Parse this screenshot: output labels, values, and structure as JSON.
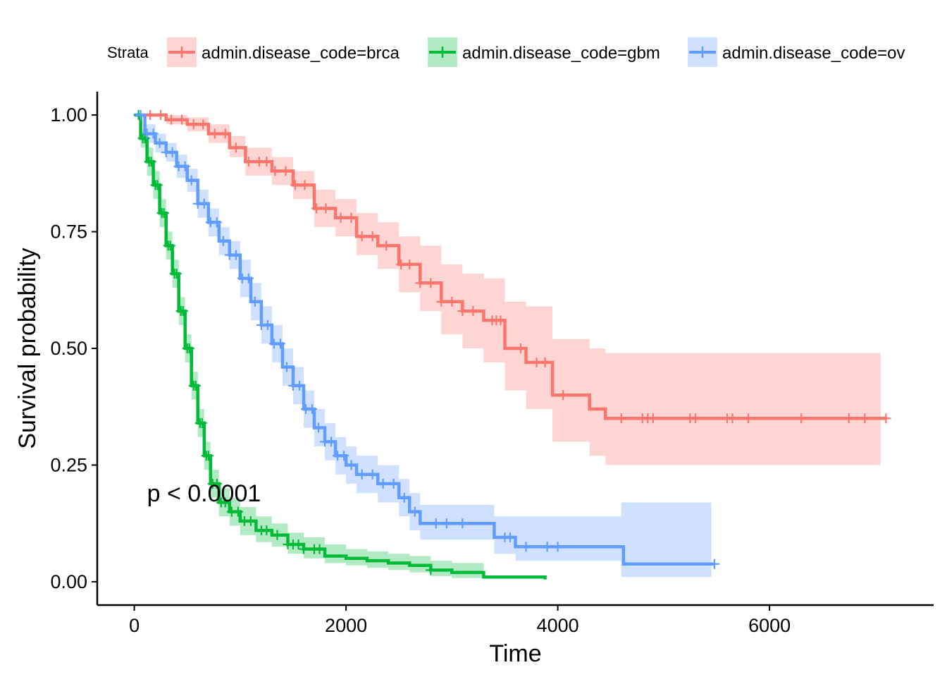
{
  "chart_data": {
    "type": "line",
    "subtype": "kaplan-meier",
    "title": "",
    "xlabel": "Time",
    "ylabel": "Survival probability",
    "xlim": [
      -350,
      7550
    ],
    "ylim": [
      -0.05,
      1.05
    ],
    "x_ticks": [
      0,
      2000,
      4000,
      6000
    ],
    "x_tick_labels": [
      "0",
      "2000",
      "4000",
      "6000"
    ],
    "y_ticks": [
      0,
      0.25,
      0.5,
      0.75,
      1.0
    ],
    "y_tick_labels": [
      "0.00",
      "0.25",
      "0.50",
      "0.75",
      "1.00"
    ],
    "grid": false,
    "legend": {
      "title": "Strata",
      "position": "top"
    },
    "annotation": {
      "text": "p < 0.0001",
      "x": 120,
      "y": 0.19
    },
    "series": [
      {
        "name": "admin.disease_code=brca",
        "color": "#F8766D",
        "fill": "#F8766D",
        "points": [
          [
            0,
            1.0
          ],
          [
            300,
            0.99
          ],
          [
            500,
            0.98
          ],
          [
            700,
            0.96
          ],
          [
            900,
            0.93
          ],
          [
            1050,
            0.9
          ],
          [
            1300,
            0.88
          ],
          [
            1500,
            0.85
          ],
          [
            1700,
            0.8
          ],
          [
            1900,
            0.78
          ],
          [
            2100,
            0.74
          ],
          [
            2300,
            0.72
          ],
          [
            2500,
            0.68
          ],
          [
            2700,
            0.64
          ],
          [
            2900,
            0.6
          ],
          [
            3100,
            0.58
          ],
          [
            3300,
            0.56
          ],
          [
            3450,
            0.56
          ],
          [
            3500,
            0.5
          ],
          [
            3700,
            0.47
          ],
          [
            3900,
            0.47
          ],
          [
            3950,
            0.4
          ],
          [
            4300,
            0.37
          ],
          [
            4450,
            0.35
          ],
          [
            7100,
            0.35
          ]
        ],
        "ci_upper": [
          [
            0,
            1.0
          ],
          [
            300,
            1.0
          ],
          [
            500,
            0.995
          ],
          [
            700,
            0.98
          ],
          [
            900,
            0.955
          ],
          [
            1050,
            0.93
          ],
          [
            1300,
            0.91
          ],
          [
            1500,
            0.88
          ],
          [
            1700,
            0.84
          ],
          [
            1900,
            0.82
          ],
          [
            2100,
            0.79
          ],
          [
            2300,
            0.77
          ],
          [
            2500,
            0.74
          ],
          [
            2700,
            0.72
          ],
          [
            2900,
            0.68
          ],
          [
            3100,
            0.66
          ],
          [
            3300,
            0.65
          ],
          [
            3450,
            0.65
          ],
          [
            3500,
            0.6
          ],
          [
            3700,
            0.59
          ],
          [
            3900,
            0.59
          ],
          [
            3950,
            0.52
          ],
          [
            4300,
            0.5
          ],
          [
            4450,
            0.49
          ],
          [
            7050,
            0.49
          ]
        ],
        "ci_lower": [
          [
            0,
            1.0
          ],
          [
            300,
            0.98
          ],
          [
            500,
            0.965
          ],
          [
            700,
            0.94
          ],
          [
            900,
            0.91
          ],
          [
            1050,
            0.87
          ],
          [
            1300,
            0.85
          ],
          [
            1500,
            0.82
          ],
          [
            1700,
            0.76
          ],
          [
            1900,
            0.74
          ],
          [
            2100,
            0.7
          ],
          [
            2300,
            0.67
          ],
          [
            2500,
            0.62
          ],
          [
            2700,
            0.58
          ],
          [
            2900,
            0.53
          ],
          [
            3100,
            0.5
          ],
          [
            3300,
            0.47
          ],
          [
            3450,
            0.47
          ],
          [
            3500,
            0.41
          ],
          [
            3700,
            0.37
          ],
          [
            3900,
            0.37
          ],
          [
            3950,
            0.3
          ],
          [
            4300,
            0.27
          ],
          [
            4450,
            0.25
          ],
          [
            7050,
            0.25
          ]
        ],
        "censor_x": [
          150,
          250,
          350,
          450,
          560,
          650,
          760,
          860,
          960,
          1080,
          1180,
          1250,
          1330,
          1430,
          1520,
          1610,
          1720,
          1810,
          1950,
          2050,
          2150,
          2250,
          2380,
          2520,
          2600,
          2700,
          2800,
          2900,
          3000,
          3100,
          3200,
          3380,
          3420,
          3460,
          3650,
          3800,
          3880,
          4050,
          4600,
          4800,
          4850,
          4900,
          5250,
          5300,
          5600,
          5650,
          5800,
          6300,
          6750,
          6900,
          7100
        ]
      },
      {
        "name": "admin.disease_code=gbm",
        "color": "#00BA38",
        "fill": "#00BA38",
        "points": [
          [
            0,
            1.0
          ],
          [
            60,
            0.95
          ],
          [
            120,
            0.9
          ],
          [
            180,
            0.85
          ],
          [
            240,
            0.79
          ],
          [
            300,
            0.72
          ],
          [
            360,
            0.66
          ],
          [
            420,
            0.58
          ],
          [
            480,
            0.5
          ],
          [
            540,
            0.42
          ],
          [
            600,
            0.34
          ],
          [
            660,
            0.27
          ],
          [
            720,
            0.21
          ],
          [
            800,
            0.17
          ],
          [
            900,
            0.15
          ],
          [
            1000,
            0.13
          ],
          [
            1150,
            0.11
          ],
          [
            1300,
            0.1
          ],
          [
            1450,
            0.08
          ],
          [
            1600,
            0.07
          ],
          [
            1800,
            0.055
          ],
          [
            2000,
            0.05
          ],
          [
            2200,
            0.045
          ],
          [
            2400,
            0.04
          ],
          [
            2600,
            0.035
          ],
          [
            2800,
            0.025
          ],
          [
            3000,
            0.02
          ],
          [
            3300,
            0.01
          ],
          [
            3880,
            0.005
          ]
        ],
        "ci_upper": [
          [
            0,
            1.0
          ],
          [
            60,
            0.97
          ],
          [
            120,
            0.93
          ],
          [
            180,
            0.88
          ],
          [
            240,
            0.82
          ],
          [
            300,
            0.75
          ],
          [
            360,
            0.69
          ],
          [
            420,
            0.61
          ],
          [
            480,
            0.53
          ],
          [
            540,
            0.45
          ],
          [
            600,
            0.37
          ],
          [
            660,
            0.3
          ],
          [
            720,
            0.24
          ],
          [
            800,
            0.2
          ],
          [
            900,
            0.18
          ],
          [
            1000,
            0.16
          ],
          [
            1150,
            0.14
          ],
          [
            1300,
            0.125
          ],
          [
            1450,
            0.105
          ],
          [
            1600,
            0.095
          ],
          [
            1800,
            0.08
          ],
          [
            2000,
            0.07
          ],
          [
            2200,
            0.065
          ],
          [
            2400,
            0.06
          ],
          [
            2600,
            0.055
          ],
          [
            2800,
            0.045
          ],
          [
            3000,
            0.04
          ],
          [
            3300,
            0.035
          ]
        ],
        "ci_lower": [
          [
            0,
            1.0
          ],
          [
            60,
            0.93
          ],
          [
            120,
            0.87
          ],
          [
            180,
            0.82
          ],
          [
            240,
            0.76
          ],
          [
            300,
            0.69
          ],
          [
            360,
            0.63
          ],
          [
            420,
            0.55
          ],
          [
            480,
            0.47
          ],
          [
            540,
            0.39
          ],
          [
            600,
            0.31
          ],
          [
            660,
            0.24
          ],
          [
            720,
            0.18
          ],
          [
            800,
            0.14
          ],
          [
            900,
            0.12
          ],
          [
            1000,
            0.1
          ],
          [
            1150,
            0.085
          ],
          [
            1300,
            0.075
          ],
          [
            1450,
            0.06
          ],
          [
            1600,
            0.05
          ],
          [
            1800,
            0.04
          ],
          [
            2000,
            0.035
          ],
          [
            2200,
            0.03
          ],
          [
            2400,
            0.025
          ],
          [
            2600,
            0.02
          ],
          [
            2800,
            0.012
          ],
          [
            3000,
            0.008
          ],
          [
            3300,
            0.004
          ]
        ],
        "censor_x": [
          40,
          80,
          100,
          140,
          160,
          200,
          220,
          260,
          280,
          320,
          340,
          380,
          400,
          440,
          460,
          500,
          520,
          560,
          580,
          620,
          640,
          680,
          700,
          740,
          780,
          820,
          860,
          920,
          980,
          1040,
          1100,
          1200,
          1250,
          1350,
          1450,
          1500,
          1550,
          1600,
          1700,
          1750,
          2800
        ]
      },
      {
        "name": "admin.disease_code=ov",
        "color": "#619CFF",
        "fill": "#619CFF",
        "points": [
          [
            0,
            1.0
          ],
          [
            100,
            0.96
          ],
          [
            200,
            0.94
          ],
          [
            300,
            0.92
          ],
          [
            400,
            0.89
          ],
          [
            500,
            0.86
          ],
          [
            600,
            0.81
          ],
          [
            700,
            0.77
          ],
          [
            800,
            0.73
          ],
          [
            900,
            0.7
          ],
          [
            1000,
            0.65
          ],
          [
            1100,
            0.6
          ],
          [
            1200,
            0.55
          ],
          [
            1300,
            0.51
          ],
          [
            1400,
            0.46
          ],
          [
            1500,
            0.42
          ],
          [
            1600,
            0.37
          ],
          [
            1700,
            0.33
          ],
          [
            1800,
            0.3
          ],
          [
            1900,
            0.27
          ],
          [
            2000,
            0.25
          ],
          [
            2100,
            0.23
          ],
          [
            2300,
            0.21
          ],
          [
            2500,
            0.18
          ],
          [
            2600,
            0.15
          ],
          [
            2700,
            0.125
          ],
          [
            3100,
            0.125
          ],
          [
            3400,
            0.095
          ],
          [
            3600,
            0.075
          ],
          [
            4600,
            0.075
          ],
          [
            4620,
            0.038
          ],
          [
            5480,
            0.038
          ]
        ],
        "ci_upper": [
          [
            0,
            1.0
          ],
          [
            100,
            0.98
          ],
          [
            200,
            0.96
          ],
          [
            300,
            0.94
          ],
          [
            400,
            0.915
          ],
          [
            500,
            0.885
          ],
          [
            600,
            0.84
          ],
          [
            700,
            0.8
          ],
          [
            800,
            0.76
          ],
          [
            900,
            0.73
          ],
          [
            1000,
            0.69
          ],
          [
            1100,
            0.64
          ],
          [
            1200,
            0.59
          ],
          [
            1300,
            0.55
          ],
          [
            1400,
            0.5
          ],
          [
            1500,
            0.46
          ],
          [
            1600,
            0.41
          ],
          [
            1700,
            0.37
          ],
          [
            1800,
            0.34
          ],
          [
            1900,
            0.31
          ],
          [
            2000,
            0.29
          ],
          [
            2100,
            0.27
          ],
          [
            2300,
            0.25
          ],
          [
            2500,
            0.22
          ],
          [
            2600,
            0.19
          ],
          [
            2700,
            0.165
          ],
          [
            3100,
            0.165
          ],
          [
            3400,
            0.14
          ],
          [
            3600,
            0.14
          ],
          [
            4600,
            0.17
          ],
          [
            5450,
            0.17
          ]
        ],
        "ci_lower": [
          [
            0,
            1.0
          ],
          [
            100,
            0.94
          ],
          [
            200,
            0.92
          ],
          [
            300,
            0.9
          ],
          [
            400,
            0.865
          ],
          [
            500,
            0.835
          ],
          [
            600,
            0.78
          ],
          [
            700,
            0.74
          ],
          [
            800,
            0.7
          ],
          [
            900,
            0.67
          ],
          [
            1000,
            0.61
          ],
          [
            1100,
            0.56
          ],
          [
            1200,
            0.51
          ],
          [
            1300,
            0.47
          ],
          [
            1400,
            0.42
          ],
          [
            1500,
            0.38
          ],
          [
            1600,
            0.33
          ],
          [
            1700,
            0.29
          ],
          [
            1800,
            0.26
          ],
          [
            1900,
            0.23
          ],
          [
            2000,
            0.21
          ],
          [
            2100,
            0.19
          ],
          [
            2300,
            0.17
          ],
          [
            2500,
            0.14
          ],
          [
            2600,
            0.11
          ],
          [
            2700,
            0.09
          ],
          [
            3100,
            0.09
          ],
          [
            3400,
            0.06
          ],
          [
            3600,
            0.045
          ],
          [
            4600,
            0.01
          ],
          [
            5450,
            0.008
          ]
        ],
        "censor_x": [
          60,
          120,
          180,
          240,
          300,
          360,
          420,
          480,
          540,
          600,
          660,
          720,
          780,
          840,
          900,
          960,
          1020,
          1080,
          1140,
          1200,
          1260,
          1320,
          1380,
          1440,
          1500,
          1560,
          1620,
          1680,
          1740,
          1800,
          1860,
          1920,
          1980,
          2050,
          2150,
          2250,
          2350,
          2450,
          2550,
          2650,
          2850,
          2950,
          3100,
          3500,
          3550,
          3700,
          3900,
          4000,
          5480
        ]
      }
    ]
  }
}
